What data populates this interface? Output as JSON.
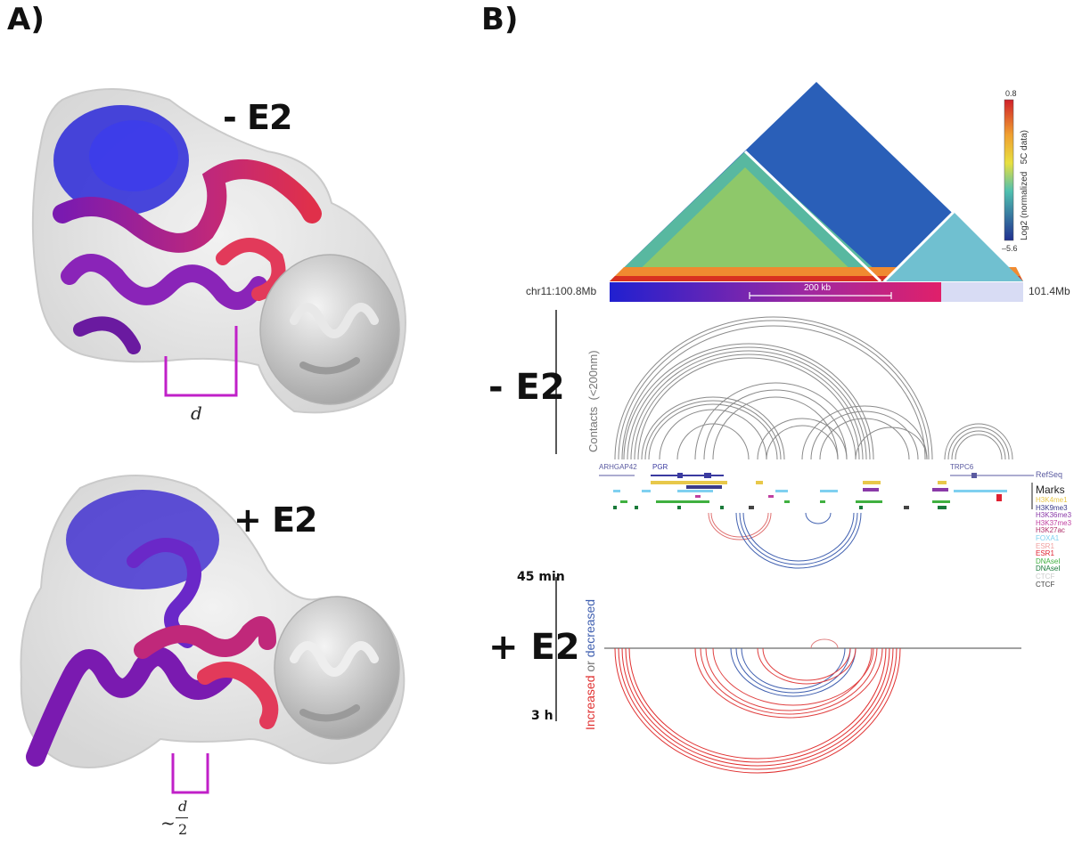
{
  "panel_a": {
    "label": "A)",
    "top": {
      "condition": "- E2",
      "distance_label": "d"
    },
    "bottom": {
      "condition": "+ E2",
      "distance_prefix": "~",
      "distance_num": "d",
      "distance_den": "2"
    }
  },
  "panel_b": {
    "label": "B)",
    "colorbar": {
      "max": "0.8",
      "min": "–5.6",
      "label": "Log2 (normalized   5C data)"
    },
    "region": {
      "start": "chr11:100.8Mb",
      "end": "101.4Mb",
      "scale": "200 kb"
    },
    "minus_e2": {
      "condition": "- E2",
      "contacts_label": "Contacts  (<200nm)"
    },
    "genes": [
      "ARHGAP42",
      "PGR",
      "TRPC6"
    ],
    "refseq": "RefSeq",
    "marks_title": "Marks",
    "marks": [
      {
        "name": "H3K4me1",
        "color": "#e8c84a"
      },
      {
        "name": "H3K9me3",
        "color": "#3a3a8a"
      },
      {
        "name": "H3K36me3",
        "color": "#8a3aa8"
      },
      {
        "name": "H3K37me3",
        "color": "#c040a0"
      },
      {
        "name": "H3K27ac",
        "color": "#b0306a"
      },
      {
        "name": "FOXA1",
        "color": "#7fd0f0"
      },
      {
        "name": "ESR1",
        "color": "#f0a0a0"
      },
      {
        "name": "ESR1",
        "color": "#e02030"
      },
      {
        "name": "DNAseI",
        "color": "#40b040"
      },
      {
        "name": "DNAseI",
        "color": "#1a7a3a"
      },
      {
        "name": "CTCF",
        "color": "#cccccc"
      },
      {
        "name": "CTCF",
        "color": "#444444"
      }
    ],
    "plus_e2": {
      "condition": "+ E2",
      "time_top": "45 min",
      "time_bottom": "3 h",
      "label_increased": "Increased",
      "label_or": " or ",
      "label_decreased": "decreased"
    }
  }
}
